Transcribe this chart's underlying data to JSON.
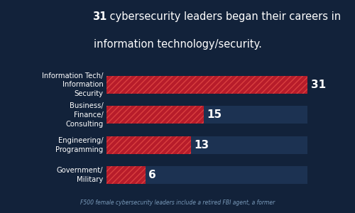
{
  "title_bold": "31",
  "title_line1_rest": " cybersecurity leaders began their careers in",
  "title_line2": "information technology/security.",
  "categories": [
    "Information Tech/\nInformation\nSecurity",
    "Business/\nFinance/\nConsulting",
    "Engineering/\nProgramming",
    "Government/\nMilitary"
  ],
  "values": [
    31,
    15,
    13,
    6
  ],
  "max_value": 31,
  "bg_color": "#12223a",
  "bar_bg_color": "#1c3252",
  "bar_fill_color": "#b71c2a",
  "hatch_color": "#d94040",
  "label_color": "#ffffff",
  "title_color": "#ffffff",
  "footer_text": "F500 female cybersecurity leaders include a retired FBI agent, a former",
  "footer_color": "#7a9bbb",
  "bar_height": 0.58,
  "category_fontsize": 7.2,
  "title_fontsize": 10.5,
  "value_fontsize": 11
}
